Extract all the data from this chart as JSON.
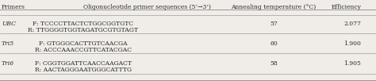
{
  "headers": [
    "Primers",
    "Oligonucleotide primer sequences (5’→3’)",
    "Annealing temperature (°C)",
    "Efficiency"
  ],
  "rows": [
    {
      "primer": "UBC",
      "sequences": [
        "F: TCCCCTTACTCTGGCGGTGTC",
        "R: TTGGGGTGGTAGATGCGTGTAGT"
      ],
      "temp": "57",
      "efficiency": "2.077"
    },
    {
      "primer": "Tri5",
      "sequences": [
        "F: GTGGGCACTTGTCAACGA",
        "R: ACCCAAACCGTTCATACGAC"
      ],
      "temp": "60",
      "efficiency": "1.900"
    },
    {
      "primer": "Tri6",
      "sequences": [
        "F: CGGTGGATTCAACCAAGACT",
        "R: AACTAGGGAATGGGCATTTG"
      ],
      "temp": "58",
      "efficiency": "1.905"
    }
  ],
  "bg_color": "#f0ede8",
  "text_color": "#2a2a2a",
  "line_color": "#888888",
  "font_size": 5.5,
  "header_font_size": 5.5
}
